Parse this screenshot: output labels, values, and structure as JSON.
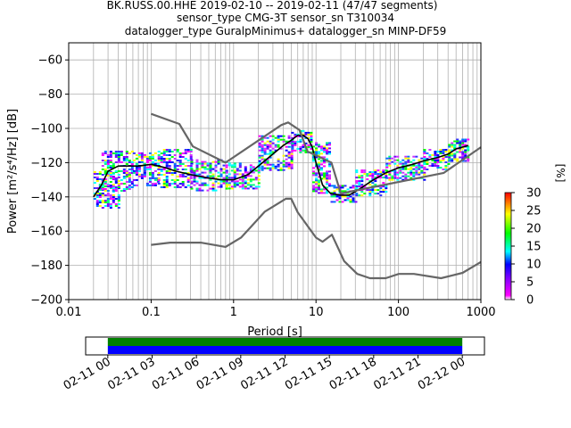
{
  "title_lines": [
    "BK.RUSS.00.HHE   2019-02-10 -- 2019-02-11  (47/47 segments)",
    "sensor_type CMG-3T sensor_sn T310034",
    "datalogger_type GuralpMinimus+ datalogger_sn MINP-DF59"
  ],
  "chart_data": {
    "type": "heatmap",
    "title": "BK.RUSS.00.HHE   2019-02-10 -- 2019-02-11  (47/47 segments)",
    "xlabel": "Period [s]",
    "ylabel": "Power [m²/s⁴/Hz] [dB]",
    "xscale": "log",
    "xlim": [
      0.01,
      1000
    ],
    "ylim": [
      -200,
      -50
    ],
    "grid": true,
    "x_ticks": [
      0.01,
      0.1,
      1,
      10,
      100,
      1000
    ],
    "x_tick_labels": [
      "0.01",
      "0.1",
      "1",
      "10",
      "100",
      "1000"
    ],
    "y_ticks": [
      -200,
      -180,
      -160,
      -140,
      -120,
      -100,
      -80,
      -60
    ],
    "y_tick_labels": [
      "−200",
      "−180",
      "−160",
      "−140",
      "−120",
      "−100",
      "−80",
      "−60"
    ],
    "colorbar": {
      "label": "[%]",
      "range": [
        0,
        30
      ],
      "ticks": [
        0,
        5,
        10,
        15,
        20,
        25,
        30
      ],
      "tick_labels": [
        "0",
        "5",
        "10",
        "15",
        "20",
        "25",
        "30"
      ]
    },
    "series": [
      {
        "role": "mode",
        "color": "#000000",
        "x": [
          0.02,
          0.025,
          0.03,
          0.04,
          0.05,
          0.07,
          0.1,
          0.15,
          0.2,
          0.3,
          0.5,
          0.7,
          1,
          1.5,
          2,
          3,
          4,
          5,
          6,
          7,
          8,
          9,
          10,
          12,
          15,
          20,
          25,
          30,
          40,
          50,
          70,
          100,
          150,
          200,
          300,
          400,
          500,
          700
        ],
        "y": [
          -140,
          -133,
          -125,
          -122,
          -122,
          -122,
          -121,
          -123,
          -125,
          -127,
          -129,
          -130,
          -130,
          -127,
          -122,
          -115,
          -110,
          -107,
          -104,
          -104,
          -106,
          -111,
          -120,
          -133,
          -138,
          -139,
          -139,
          -137,
          -133,
          -130,
          -126,
          -123,
          -121,
          -119,
          -117,
          -115,
          -112,
          -110
        ]
      },
      {
        "role": "high-noise-model",
        "color": "#666666",
        "x": [
          0.1,
          0.22,
          0.32,
          0.8,
          3.8,
          4.6,
          6.3,
          7.9,
          15.4,
          20,
          354.8,
          1000
        ],
        "y": [
          -91.5,
          -97.4,
          -110.5,
          -120,
          -98,
          -96.5,
          -101,
          -113.5,
          -120,
          -138,
          -126,
          -111
        ]
      },
      {
        "role": "low-noise-model",
        "color": "#666666",
        "x": [
          0.1,
          0.17,
          0.4,
          0.8,
          1.24,
          2.4,
          4.3,
          5,
          6,
          10,
          12,
          15.6,
          21.9,
          31.6,
          45,
          70,
          101,
          154,
          328,
          600,
          1000
        ],
        "y": [
          -168,
          -166.7,
          -166.7,
          -169.2,
          -163.7,
          -148.6,
          -141.1,
          -141.1,
          -149,
          -163.8,
          -166.2,
          -162.1,
          -177.5,
          -185,
          -187.5,
          -187.5,
          -185,
          -185,
          -187.5,
          -184.4,
          -178
        ]
      }
    ],
    "density_bands": [
      {
        "x": [
          0.02,
          0.04
        ],
        "y": [
          -146,
          -125
        ]
      },
      {
        "x": [
          0.025,
          0.06
        ],
        "y": [
          -136,
          -113
        ]
      },
      {
        "x": [
          0.06,
          0.12
        ],
        "y": [
          -133,
          -114
        ]
      },
      {
        "x": [
          0.12,
          0.3
        ],
        "y": [
          -134,
          -112
        ]
      },
      {
        "x": [
          0.3,
          0.8
        ],
        "y": [
          -136,
          -118
        ]
      },
      {
        "x": [
          0.8,
          2
        ],
        "y": [
          -135,
          -120
        ]
      },
      {
        "x": [
          2,
          5
        ],
        "y": [
          -124,
          -104
        ]
      },
      {
        "x": [
          5,
          9
        ],
        "y": [
          -114,
          -101
        ]
      },
      {
        "x": [
          9,
          15
        ],
        "y": [
          -138,
          -108
        ]
      },
      {
        "x": [
          15,
          30
        ],
        "y": [
          -143,
          -133
        ]
      },
      {
        "x": [
          30,
          70
        ],
        "y": [
          -139,
          -124
        ]
      },
      {
        "x": [
          70,
          200
        ],
        "y": [
          -130,
          -116
        ]
      },
      {
        "x": [
          200,
          400
        ],
        "y": [
          -124,
          -112
        ]
      },
      {
        "x": [
          400,
          700
        ],
        "y": [
          -119,
          -106
        ]
      }
    ],
    "coverage": {
      "tick_labels": [
        "02-11 00",
        "02-11 03",
        "02-11 06",
        "02-11 09",
        "02-11 12",
        "02-11 15",
        "02-11 18",
        "02-11 21",
        "02-12 00"
      ],
      "span_hours": [
        -1.5,
        25.5
      ],
      "data_hours": [
        0,
        24
      ],
      "colors": {
        "data": "#0000ff",
        "gaps_free": "#008000"
      }
    }
  }
}
